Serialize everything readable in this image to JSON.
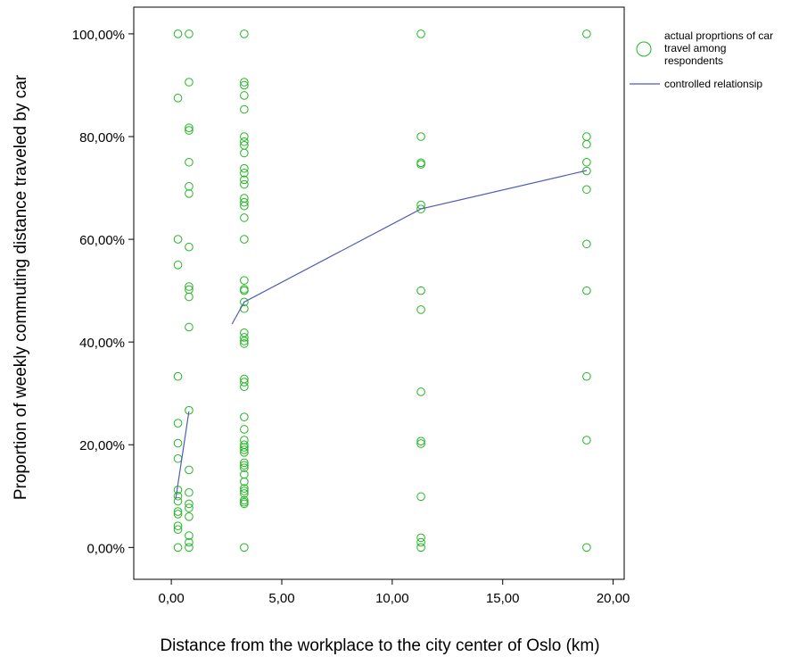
{
  "chart_data": {
    "type": "scatter",
    "title": "",
    "xlabel": "Distance from the workplace to the city center of Oslo (km)",
    "ylabel": "Proportion of weekly commuting distance traveled by car",
    "xlim": [
      -1.7,
      20.5
    ],
    "ylim": [
      -6.2,
      105.2
    ],
    "x_ticks": [
      0,
      5,
      10,
      15,
      20
    ],
    "x_tick_labels": [
      "0,00",
      "5,00",
      "10,00",
      "15,00",
      "20,00"
    ],
    "y_ticks": [
      0,
      20,
      40,
      60,
      80,
      100
    ],
    "y_tick_labels": [
      "0,00%",
      "20,00%",
      "40,00%",
      "60,00%",
      "80,00%",
      "100,00%"
    ],
    "grid": false,
    "legend_position": "right",
    "series": [
      {
        "name": "actual proprtions of car travel among respondents",
        "kind": "scatter",
        "marker": "open-circle",
        "color": "#22b522",
        "points": [
          [
            0.3,
            100
          ],
          [
            0.3,
            87.5
          ],
          [
            0.3,
            60
          ],
          [
            0.3,
            55
          ],
          [
            0.3,
            33.3
          ],
          [
            0.3,
            24.2
          ],
          [
            0.3,
            20.3
          ],
          [
            0.3,
            17.3
          ],
          [
            0.3,
            11.2
          ],
          [
            0.3,
            10
          ],
          [
            0.3,
            9
          ],
          [
            0.3,
            7
          ],
          [
            0.3,
            6.5
          ],
          [
            0.3,
            4.2
          ],
          [
            0.3,
            3.5
          ],
          [
            0.3,
            0
          ],
          [
            0.8,
            100
          ],
          [
            0.8,
            90.6
          ],
          [
            0.8,
            81.7
          ],
          [
            0.8,
            81.2
          ],
          [
            0.8,
            75
          ],
          [
            0.8,
            70.3
          ],
          [
            0.8,
            68.9
          ],
          [
            0.8,
            58.5
          ],
          [
            0.8,
            50.8
          ],
          [
            0.8,
            50.2
          ],
          [
            0.8,
            48.8
          ],
          [
            0.8,
            42.9
          ],
          [
            0.8,
            26.7
          ],
          [
            0.8,
            15.1
          ],
          [
            0.8,
            10.7
          ],
          [
            0.8,
            8.5
          ],
          [
            0.8,
            7.7
          ],
          [
            0.8,
            6
          ],
          [
            0.8,
            2.3
          ],
          [
            0.8,
            1
          ],
          [
            0.8,
            0
          ],
          [
            3.3,
            100
          ],
          [
            3.3,
            90.6
          ],
          [
            3.3,
            90
          ],
          [
            3.3,
            88
          ],
          [
            3.3,
            85.3
          ],
          [
            3.3,
            80
          ],
          [
            3.3,
            79
          ],
          [
            3.3,
            78.3
          ],
          [
            3.3,
            76.8
          ],
          [
            3.3,
            73.8
          ],
          [
            3.3,
            72.9
          ],
          [
            3.3,
            71.6
          ],
          [
            3.3,
            70.7
          ],
          [
            3.3,
            68
          ],
          [
            3.3,
            67.2
          ],
          [
            3.3,
            66.5
          ],
          [
            3.3,
            64.2
          ],
          [
            3.3,
            60
          ],
          [
            3.3,
            52
          ],
          [
            3.3,
            50.3
          ],
          [
            3.3,
            50
          ],
          [
            3.3,
            47.8
          ],
          [
            3.3,
            46.5
          ],
          [
            3.3,
            41.8
          ],
          [
            3.3,
            40.9
          ],
          [
            3.3,
            40.2
          ],
          [
            3.3,
            39.7
          ],
          [
            3.3,
            32.8
          ],
          [
            3.3,
            32.2
          ],
          [
            3.3,
            31.3
          ],
          [
            3.3,
            25.4
          ],
          [
            3.3,
            23
          ],
          [
            3.3,
            20.9
          ],
          [
            3.3,
            20
          ],
          [
            3.3,
            19.5
          ],
          [
            3.3,
            19
          ],
          [
            3.3,
            18.5
          ],
          [
            3.3,
            16.5
          ],
          [
            3.3,
            16
          ],
          [
            3.3,
            15.5
          ],
          [
            3.3,
            14.2
          ],
          [
            3.3,
            12.8
          ],
          [
            3.3,
            11.5
          ],
          [
            3.3,
            11
          ],
          [
            3.3,
            10.5
          ],
          [
            3.3,
            9.2
          ],
          [
            3.3,
            8.8
          ],
          [
            3.3,
            8.5
          ],
          [
            3.3,
            0
          ],
          [
            11.3,
            100
          ],
          [
            11.3,
            80
          ],
          [
            11.3,
            74.9
          ],
          [
            11.3,
            74.6
          ],
          [
            11.3,
            66.7
          ],
          [
            11.3,
            65.9
          ],
          [
            11.3,
            50
          ],
          [
            11.3,
            46.3
          ],
          [
            11.3,
            30.3
          ],
          [
            11.3,
            20.7
          ],
          [
            11.3,
            20.2
          ],
          [
            11.3,
            9.9
          ],
          [
            11.3,
            1.9
          ],
          [
            11.3,
            1
          ],
          [
            11.3,
            0
          ],
          [
            18.8,
            100
          ],
          [
            18.8,
            80
          ],
          [
            18.8,
            78.5
          ],
          [
            18.8,
            75
          ],
          [
            18.8,
            73.3
          ],
          [
            18.8,
            69.7
          ],
          [
            18.8,
            59.1
          ],
          [
            18.8,
            50
          ],
          [
            18.8,
            33.3
          ],
          [
            18.8,
            20.9
          ],
          [
            18.8,
            0
          ]
        ]
      },
      {
        "name": "controlled relationsip",
        "kind": "line",
        "color": "#4f5eb0",
        "segments": [
          [
            [
              0.2,
              9.5
            ],
            [
              0.8,
              26.5
            ]
          ],
          [
            [
              2.75,
              43.5
            ],
            [
              3.3,
              47.8
            ],
            [
              11.3,
              65.9
            ],
            [
              18.8,
              73.4
            ]
          ]
        ]
      }
    ],
    "legend": [
      {
        "label": "actual proprtions of car travel among respondents",
        "symbol": "open-circle",
        "color": "#22b522"
      },
      {
        "label": "controlled relationsip",
        "symbol": "line",
        "color": "#4f5eb0"
      }
    ]
  }
}
